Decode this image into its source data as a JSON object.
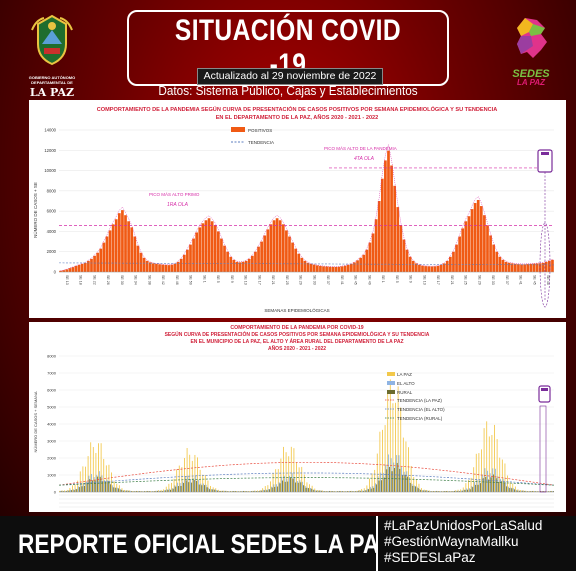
{
  "header": {
    "title": "SITUACIÓN COVID -19",
    "subtitle": "Datos: Sistema Público, Cajas y Establecimientos Privados",
    "updated": "Actualizado  al  29  noviembre de 2022",
    "left_logo_text": "GOBIERNO AUTÓNOMO DEPARTAMENTAL DE",
    "left_logo_name": "LA PAZ",
    "right_logo_line1": "SEDES",
    "right_logo_line2": "LA PAZ"
  },
  "footer": {
    "report": "REPORTE OFICIAL SEDES LA PAZ",
    "hashtags": [
      "#LaPazUnidosPorLaSalud",
      "#GestiónWaynaMallku",
      "#SEDESLaPaz"
    ]
  },
  "colors": {
    "bar": "#f05a14",
    "trend": "#5b7dbf",
    "annotation": "#d62ea8",
    "lapaz": "#f2c84b",
    "elalto": "#8fb4e3",
    "rural": "#6b6b2e"
  },
  "chart_data": [
    {
      "type": "bar",
      "title": "COMPORTAMIENTO DE LA PANDEMIA SEGÚN CURVA DE PRESENTACIÓN DE CASOS POSITIVOS POR SEMANA EPIDEMIOLÓGICA Y SU TENDENCIA EN EL DEPARTAMENTO DE LA PAZ, AÑOS 2020 - 2021 - 2022",
      "ylabel": "NÚMERO DE CASOS + SE",
      "xlabel": "SEMANAS EPIDEMIOLÓGICAS",
      "ylim": [
        0,
        14000
      ],
      "yticks": [
        0,
        2000,
        4000,
        6000,
        8000,
        10000,
        12000,
        14000
      ],
      "legend": [
        "POSITIVOS",
        "TENDENCIA"
      ],
      "legend_position": "top-right",
      "annotations": [
        {
          "text": "PICO MÁS ALTO PRIMO",
          "sub": "1RA OLA",
          "value": 4700
        },
        {
          "text": "PICO MÁS ALTO DE LA PANDEMIA",
          "sub": "4TA OLA",
          "value": 11962
        }
      ],
      "xtick_labels": [
        "SE 13",
        "SE 18",
        "SE 22",
        "SE 26",
        "SE 30",
        "SE 34",
        "SE 38",
        "SE 42",
        "SE 46",
        "SE 50",
        "SE 1",
        "SE 5",
        "SE 9",
        "SE 13",
        "SE 17",
        "SE 21",
        "SE 25",
        "SE 29",
        "SE 33",
        "SE 37",
        "SE 41",
        "SE 45",
        "SE 49",
        "SE 1",
        "SE 5",
        "SE 9",
        "SE 13",
        "SE 17",
        "SE 21",
        "SE 25",
        "SE 29",
        "SE 33",
        "SE 37",
        "SE 41",
        "SE 45",
        "SE 48"
      ],
      "values": [
        120,
        180,
        260,
        380,
        480,
        600,
        700,
        800,
        900,
        1100,
        1300,
        1600,
        1900,
        2300,
        2900,
        3500,
        4100,
        4700,
        5200,
        5800,
        6100,
        5600,
        5000,
        4400,
        3500,
        2600,
        1900,
        1400,
        1100,
        950,
        850,
        800,
        760,
        720,
        700,
        680,
        720,
        800,
        1000,
        1300,
        1700,
        2200,
        2700,
        3300,
        3900,
        4400,
        4800,
        5100,
        5300,
        5000,
        4600,
        4000,
        3300,
        2600,
        2000,
        1500,
        1200,
        1000,
        950,
        1000,
        1100,
        1300,
        1600,
        2000,
        2500,
        3000,
        3600,
        4200,
        4700,
        5100,
        5300,
        5100,
        4700,
        4100,
        3500,
        2900,
        2300,
        1800,
        1400,
        1100,
        900,
        800,
        720,
        650,
        600,
        560,
        540,
        520,
        510,
        500,
        520,
        560,
        620,
        700,
        800,
        950,
        1150,
        1400,
        1700,
        2200,
        2900,
        3800,
        5200,
        7000,
        9200,
        11000,
        11962,
        10500,
        8500,
        6400,
        4600,
        3200,
        2200,
        1500,
        1100,
        850,
        700,
        620,
        580,
        560,
        540,
        560,
        600,
        700,
        850,
        1100,
        1500,
        2000,
        2700,
        3500,
        4300,
        5000,
        5500,
        6200,
        6800,
        7100,
        6500,
        5600,
        4600,
        3600,
        2700,
        2000,
        1500,
        1200,
        1000,
        900,
        850,
        800,
        780,
        760,
        760,
        780,
        800,
        820,
        840,
        860,
        900,
        1000,
        1100,
        1200
      ],
      "trend_level": 4600
    },
    {
      "type": "bar",
      "title": "COMPORTAMIENTO DE LA PANDEMIA POR COVID-19",
      "subtitle": "SEGÚN CURVA DE PRESENTACIÓN DE CASOS POSITIVOS POR SEMANA EPIDEMIOLÓGICA Y SU TENDENCIA EN EL MUNICIPIO DE LA PAZ, EL ALTO Y ÁREA RURAL DEL DEPARTAMENTO DE LA PAZ AÑOS 2020 - 2021 - 2022",
      "ylabel": "NÚMERO DE CASOS + SEMANA",
      "ylim": [
        0,
        8000
      ],
      "yticks": [
        0,
        1000,
        2000,
        3000,
        4000,
        5000,
        6000,
        7000,
        8000
      ],
      "legend": [
        "LA PAZ",
        "EL ALTO",
        "RURAL",
        "TENDENCIA (LA PAZ)",
        "TENDENCIA (EL ALTO)",
        "TENDENCIA (RURAL)"
      ],
      "legend_position": "right",
      "series": [
        {
          "name": "LA PAZ",
          "peaks": [
            [
              14,
              3200
            ],
            [
              50,
              2600
            ],
            [
              88,
              2900
            ],
            [
              128,
              7000
            ],
            [
              165,
              4400
            ]
          ]
        },
        {
          "name": "EL ALTO",
          "peaks": [
            [
              14,
              1200
            ],
            [
              50,
              1000
            ],
            [
              88,
              1100
            ],
            [
              128,
              2400
            ],
            [
              165,
              1500
            ]
          ]
        },
        {
          "name": "RURAL",
          "peaks": [
            [
              14,
              900
            ],
            [
              50,
              700
            ],
            [
              88,
              800
            ],
            [
              128,
              1700
            ],
            [
              165,
              1000
            ]
          ]
        }
      ]
    }
  ]
}
